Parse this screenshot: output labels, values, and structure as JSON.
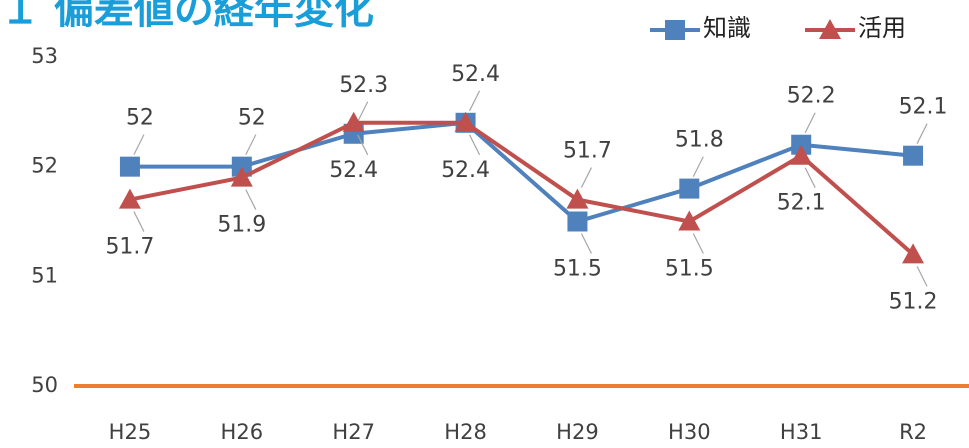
{
  "chart_data": {
    "type": "line",
    "title": "１ 偏差値の経年変化",
    "categories": [
      "H25",
      "H26",
      "H27",
      "H28",
      "H29",
      "H30",
      "H31",
      "R2"
    ],
    "series": [
      {
        "name": "知識",
        "color": "#4f81bd",
        "marker": "square",
        "values": [
          52,
          52,
          52.3,
          52.4,
          51.5,
          51.8,
          52.2,
          52.1
        ]
      },
      {
        "name": "活用",
        "color": "#c0504d",
        "marker": "triangle",
        "values": [
          51.7,
          51.9,
          52.4,
          52.4,
          51.7,
          51.5,
          52.1,
          51.2
        ]
      }
    ],
    "ylim": [
      50,
      53
    ],
    "yticks": [
      50,
      51,
      52,
      53
    ],
    "axis_color": "#ed7d31",
    "legend": "top-right"
  }
}
